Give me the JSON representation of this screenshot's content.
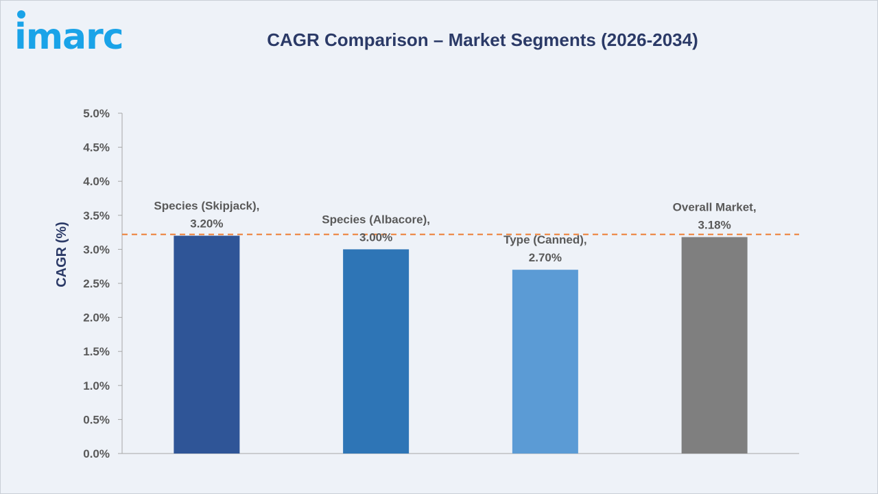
{
  "brand": {
    "logo_text": "imarc",
    "logo_color": "#1aa3e8"
  },
  "chart_data": {
    "type": "bar",
    "title": "CAGR Comparison – Market Segments (2026-2034)",
    "xlabel": "",
    "ylabel": "CAGR (%)",
    "ylim": [
      0,
      5.0
    ],
    "yticks": [
      0,
      0.5,
      1.0,
      1.5,
      2.0,
      2.5,
      3.0,
      3.5,
      4.0,
      4.5,
      5.0
    ],
    "ytick_labels": [
      "0.0%",
      "0.5%",
      "1.0%",
      "1.5%",
      "2.0%",
      "2.5%",
      "3.0%",
      "3.5%",
      "4.0%",
      "4.5%",
      "5.0%"
    ],
    "categories": [
      "Species (Skipjack)",
      "Species (Albacore)",
      "Type (Canned)",
      "Overall Market"
    ],
    "values": [
      3.2,
      3.0,
      2.7,
      3.18
    ],
    "data_labels": [
      [
        "Species (Skipjack),",
        "3.20%"
      ],
      [
        "Species (Albacore),",
        "3.00%"
      ],
      [
        "Type (Canned),",
        "2.70%"
      ],
      [
        "Overall Market,",
        "3.18%"
      ]
    ],
    "colors": [
      "#2f5597",
      "#2e75b6",
      "#5b9bd5",
      "#7f7f7f"
    ],
    "reference_line": {
      "value": 3.22,
      "color": "#ed7d31",
      "style": "dashed"
    },
    "grid": false,
    "legend": "none"
  }
}
